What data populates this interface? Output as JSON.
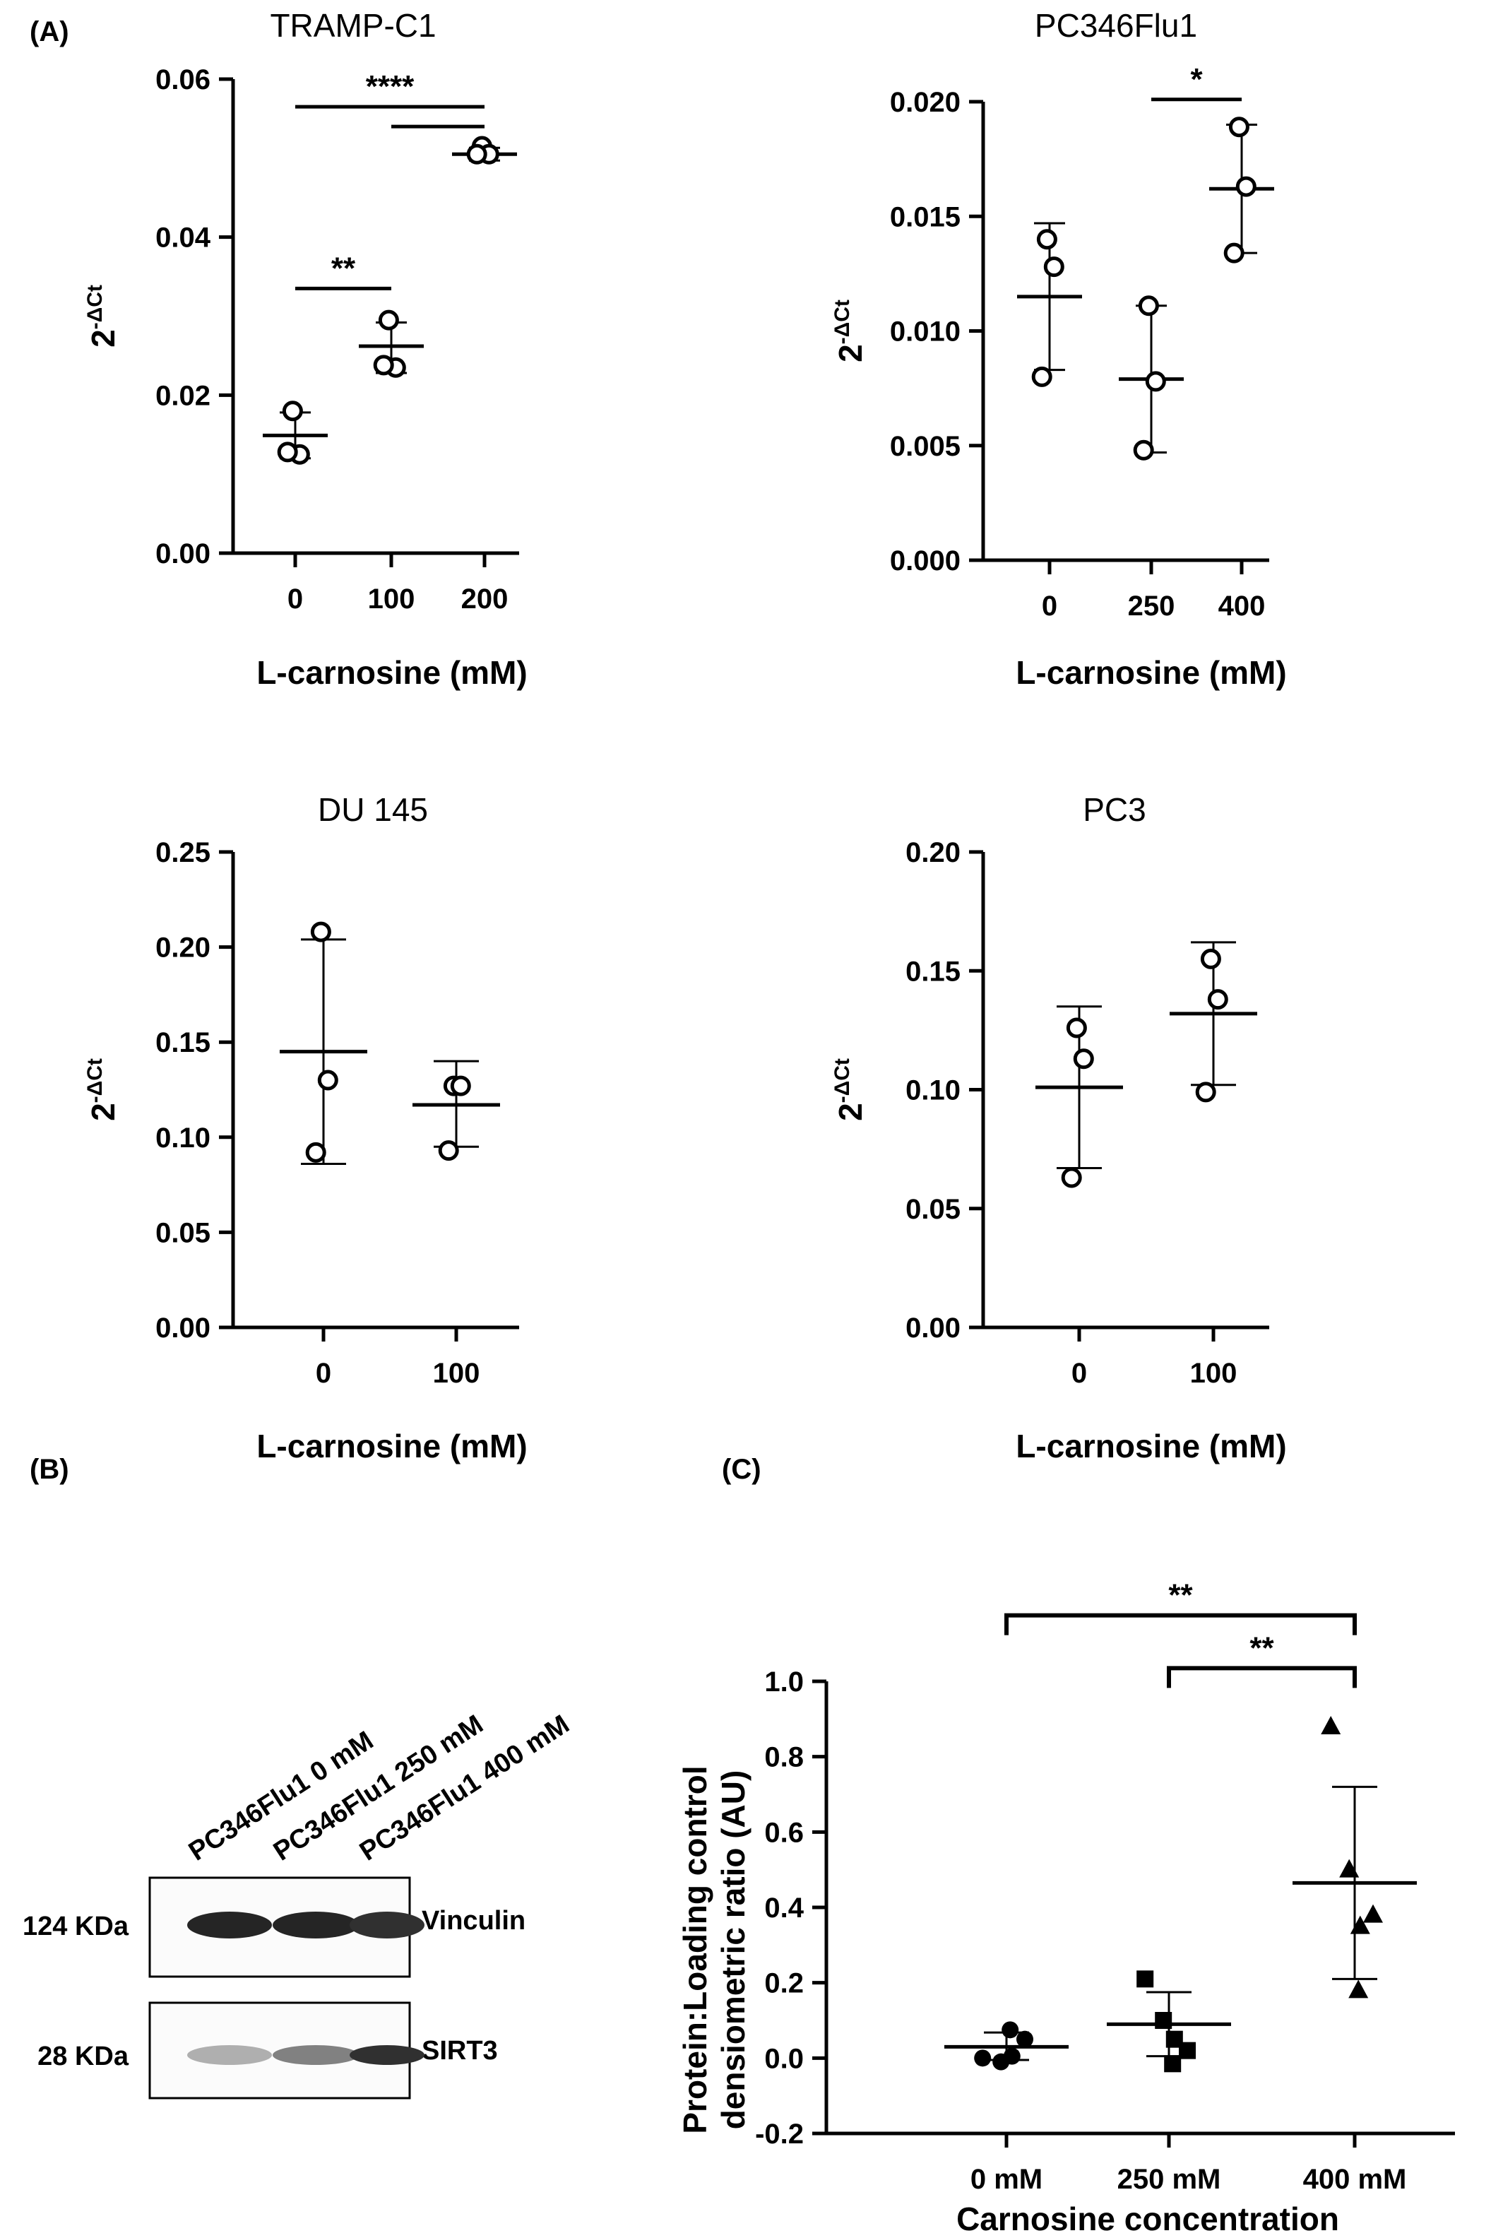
{
  "panel_labels": {
    "A": "(A)",
    "B": "(B)",
    "C": "(C)"
  },
  "chart_data": [
    {
      "type": "scatter",
      "title": "TRAMP-C1",
      "xlabel": "L-carnosine (mM)",
      "ylabel": "2-ΔCt",
      "ylabel_base": "2",
      "ylabel_sup": "-ΔCt",
      "categories": [
        "0",
        "100",
        "200"
      ],
      "ylim": [
        0,
        0.06
      ],
      "yticks": [
        "0.00",
        "0.02",
        "0.04",
        "0.06"
      ],
      "ytick_values": [
        0,
        0.02,
        0.04,
        0.06
      ],
      "points": [
        [
          0.018,
          0.0125,
          0.0128
        ],
        [
          0.0295,
          0.0235,
          0.0238
        ],
        [
          0.0515,
          0.0505,
          0.0505
        ]
      ],
      "means": [
        0.0149,
        0.0262,
        0.0505
      ],
      "errors": [
        [
          0.012,
          0.0178
        ],
        [
          0.0228,
          0.0292
        ],
        [
          0.0497,
          0.0513
        ]
      ],
      "significance": [
        {
          "from": 0,
          "to": 2,
          "y": 0.0565,
          "label": "****"
        },
        {
          "from": 1,
          "to": 2,
          "y": 0.054,
          "label": ""
        },
        {
          "from": 0,
          "to": 1,
          "y": 0.0335,
          "label": "**"
        }
      ]
    },
    {
      "type": "scatter",
      "title": "PC346Flu1",
      "xlabel": "L-carnosine (mM)",
      "ylabel": "2-ΔCt",
      "ylabel_base": "2",
      "ylabel_sup": "-ΔCt",
      "categories": [
        "0",
        "250",
        "400"
      ],
      "ylim": [
        0,
        0.02
      ],
      "yticks": [
        "0.000",
        "0.005",
        "0.010",
        "0.015",
        "0.020"
      ],
      "ytick_values": [
        0,
        0.005,
        0.01,
        0.015,
        0.02
      ],
      "points": [
        [
          0.014,
          0.0128,
          0.008
        ],
        [
          0.0111,
          0.0078,
          0.0048
        ],
        [
          0.0189,
          0.0163,
          0.0134
        ]
      ],
      "means": [
        0.0115,
        0.0079,
        0.0162
      ],
      "errors": [
        [
          0.0083,
          0.0147
        ],
        [
          0.0047,
          0.0111
        ],
        [
          0.0134,
          0.019
        ]
      ],
      "significance": [
        {
          "from": 1,
          "to": 2,
          "y": 0.0201,
          "label": "*"
        }
      ]
    },
    {
      "type": "scatter",
      "title": "DU 145",
      "xlabel": "L-carnosine (mM)",
      "ylabel": "2-ΔCt",
      "ylabel_base": "2",
      "ylabel_sup": "-ΔCt",
      "categories": [
        "0",
        "100"
      ],
      "ylim": [
        0,
        0.25
      ],
      "yticks": [
        "0.00",
        "0.05",
        "0.10",
        "0.15",
        "0.20",
        "0.25"
      ],
      "ytick_values": [
        0,
        0.05,
        0.1,
        0.15,
        0.2,
        0.25
      ],
      "points": [
        [
          0.208,
          0.13,
          0.092
        ],
        [
          0.127,
          0.127,
          0.093
        ]
      ],
      "means": [
        0.145,
        0.117
      ],
      "errors": [
        [
          0.086,
          0.204
        ],
        [
          0.095,
          0.14
        ]
      ],
      "significance": []
    },
    {
      "type": "scatter",
      "title": "PC3",
      "xlabel": "L-carnosine (mM)",
      "ylabel": "2-ΔCt",
      "ylabel_base": "2",
      "ylabel_sup": "-ΔCt",
      "categories": [
        "0",
        "100"
      ],
      "ylim": [
        0,
        0.2
      ],
      "yticks": [
        "0.00",
        "0.05",
        "0.10",
        "0.15",
        "0.20"
      ],
      "ytick_values": [
        0,
        0.05,
        0.1,
        0.15,
        0.2
      ],
      "points": [
        [
          0.126,
          0.113,
          0.063
        ],
        [
          0.155,
          0.138,
          0.099
        ]
      ],
      "means": [
        0.101,
        0.132
      ],
      "errors": [
        [
          0.067,
          0.135
        ],
        [
          0.102,
          0.162
        ]
      ],
      "significance": []
    },
    {
      "type": "scatter",
      "title": "",
      "xlabel": "Carnosine concentration",
      "ylabel_lines": [
        "Protein:Loading control",
        "densiometric ratio (AU)"
      ],
      "categories": [
        "0 mM",
        "250 mM",
        "400 mM"
      ],
      "ylim": [
        -0.2,
        1.0
      ],
      "yticks": [
        "-0.2",
        "0.0",
        "0.2",
        "0.4",
        "0.6",
        "0.8",
        "1.0"
      ],
      "ytick_values": [
        -0.2,
        0,
        0.2,
        0.4,
        0.6,
        0.8,
        1.0
      ],
      "marker_shapes": [
        "circle",
        "square",
        "triangle"
      ],
      "points": [
        [
          0.0,
          -0.01,
          0.005,
          0.05,
          0.075
        ],
        [
          0.21,
          0.1,
          0.05,
          0.02,
          -0.015
        ],
        [
          0.88,
          0.5,
          0.35,
          0.38,
          0.18
        ]
      ],
      "means": [
        0.03,
        0.09,
        0.465
      ],
      "errors": [
        [
          -0.005,
          0.068
        ],
        [
          0.005,
          0.175
        ],
        [
          0.21,
          0.72
        ]
      ],
      "significance": [
        {
          "from": 0,
          "to": 2,
          "y": 1.175,
          "label": "**"
        },
        {
          "from": 1,
          "to": 2,
          "y": 1.035,
          "label": "**"
        }
      ]
    }
  ],
  "blot": {
    "lanes": [
      "PC346Flu1 0 mM",
      "PC346Flu1 250 mM",
      "PC346Flu1 400 mM"
    ],
    "rows": [
      {
        "size": "124 KDa",
        "protein": "Vinculin",
        "band_intensity": [
          0.95,
          0.95,
          0.9
        ]
      },
      {
        "size": "28 KDa",
        "protein": "SIRT3",
        "band_intensity": [
          0.35,
          0.55,
          0.9
        ]
      }
    ]
  }
}
